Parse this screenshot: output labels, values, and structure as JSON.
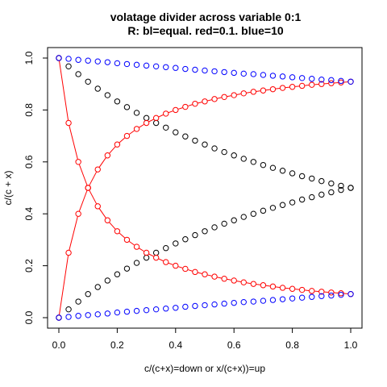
{
  "chart_data": {
    "type": "scatter",
    "title": "volatage divider across variable 0:1",
    "subtitle": "R: bl=equal. red=0.1. blue=10",
    "xlabel": "c/(c+x)=down or x/(c+x))=up",
    "ylabel": "c/(c + x)",
    "xlim": [
      0,
      1
    ],
    "ylim": [
      0,
      1
    ],
    "x_ticks": [
      0,
      0.2,
      0.4,
      0.6,
      0.8,
      1
    ],
    "y_ticks": [
      0,
      0.2,
      0.4,
      0.6,
      0.8,
      1
    ],
    "x_tick_labels": [
      "0.0",
      "0.2",
      "0.4",
      "0.6",
      "0.8",
      "1.0"
    ],
    "y_tick_labels": [
      "0.0",
      "0.2",
      "0.4",
      "0.6",
      "0.8",
      "1.0"
    ],
    "grid": false,
    "colors": {
      "equal": "#000000",
      "r0_1": "#ff0000",
      "r10": "#0000ff"
    },
    "marker": "open-circle",
    "x": [
      0.0,
      0.0333,
      0.0667,
      0.1,
      0.1333,
      0.1667,
      0.2,
      0.2333,
      0.2667,
      0.3,
      0.3333,
      0.3667,
      0.4,
      0.4333,
      0.4667,
      0.5,
      0.5333,
      0.5667,
      0.6,
      0.6333,
      0.6667,
      0.7,
      0.7333,
      0.7667,
      0.8,
      0.8333,
      0.8667,
      0.9,
      0.9333,
      0.9667,
      1.0
    ],
    "series": [
      {
        "key": "black_down",
        "color": "#000000",
        "lines": false,
        "values": [
          1.0,
          0.968,
          0.938,
          0.909,
          0.882,
          0.857,
          0.833,
          0.811,
          0.789,
          0.769,
          0.75,
          0.732,
          0.714,
          0.698,
          0.682,
          0.667,
          0.652,
          0.638,
          0.625,
          0.612,
          0.6,
          0.588,
          0.577,
          0.566,
          0.556,
          0.545,
          0.536,
          0.526,
          0.517,
          0.508,
          0.5
        ]
      },
      {
        "key": "black_up",
        "color": "#000000",
        "lines": false,
        "values": [
          0.0,
          0.032,
          0.062,
          0.091,
          0.118,
          0.143,
          0.167,
          0.189,
          0.211,
          0.231,
          0.25,
          0.268,
          0.286,
          0.302,
          0.318,
          0.333,
          0.348,
          0.362,
          0.375,
          0.388,
          0.4,
          0.412,
          0.423,
          0.434,
          0.444,
          0.455,
          0.464,
          0.474,
          0.483,
          0.492,
          0.5
        ]
      },
      {
        "key": "red_down",
        "color": "#ff0000",
        "lines": true,
        "values": [
          1.0,
          0.75,
          0.6,
          0.5,
          0.429,
          0.375,
          0.333,
          0.3,
          0.273,
          0.25,
          0.231,
          0.214,
          0.2,
          0.188,
          0.176,
          0.167,
          0.158,
          0.15,
          0.143,
          0.136,
          0.13,
          0.125,
          0.12,
          0.115,
          0.111,
          0.107,
          0.103,
          0.1,
          0.097,
          0.094,
          0.091
        ]
      },
      {
        "key": "red_up",
        "color": "#ff0000",
        "lines": true,
        "values": [
          0.0,
          0.25,
          0.4,
          0.5,
          0.571,
          0.625,
          0.667,
          0.7,
          0.727,
          0.75,
          0.769,
          0.786,
          0.8,
          0.812,
          0.824,
          0.833,
          0.842,
          0.85,
          0.857,
          0.864,
          0.87,
          0.875,
          0.88,
          0.885,
          0.889,
          0.893,
          0.897,
          0.9,
          0.903,
          0.906,
          0.909
        ]
      },
      {
        "key": "blue_down",
        "color": "#0000ff",
        "lines": false,
        "values": [
          1.0,
          0.997,
          0.993,
          0.99,
          0.987,
          0.984,
          0.98,
          0.977,
          0.974,
          0.971,
          0.968,
          0.965,
          0.962,
          0.958,
          0.955,
          0.952,
          0.949,
          0.946,
          0.943,
          0.94,
          0.938,
          0.935,
          0.932,
          0.929,
          0.926,
          0.923,
          0.92,
          0.917,
          0.915,
          0.912,
          0.909
        ]
      },
      {
        "key": "blue_up",
        "color": "#0000ff",
        "lines": false,
        "values": [
          0.0,
          0.003,
          0.007,
          0.01,
          0.013,
          0.016,
          0.02,
          0.023,
          0.026,
          0.029,
          0.032,
          0.035,
          0.038,
          0.042,
          0.045,
          0.048,
          0.051,
          0.054,
          0.057,
          0.06,
          0.062,
          0.065,
          0.068,
          0.071,
          0.074,
          0.077,
          0.08,
          0.083,
          0.085,
          0.088,
          0.091
        ]
      }
    ]
  }
}
